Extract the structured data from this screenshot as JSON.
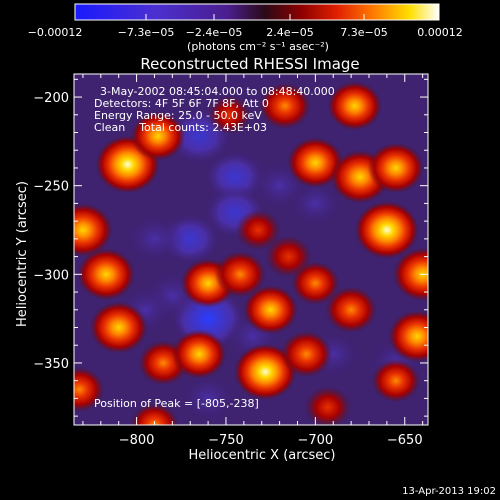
{
  "chart_data": {
    "type": "heatmap",
    "title": "Reconstructed RHESSI Image",
    "xlabel": "Heliocentric X (arcsec)",
    "ylabel": "Heliocentric Y (arcsec)",
    "xlim": [
      -835,
      -637
    ],
    "ylim": [
      -385,
      -187
    ],
    "x_ticks": [
      {
        "value": -800,
        "label": "−800"
      },
      {
        "value": -750,
        "label": "−750"
      },
      {
        "value": -700,
        "label": "−700"
      },
      {
        "value": -650,
        "label": "−650"
      }
    ],
    "y_ticks": [
      {
        "value": -200,
        "label": "−200"
      },
      {
        "value": -250,
        "label": "−250"
      },
      {
        "value": -300,
        "label": "−300"
      },
      {
        "value": -350,
        "label": "−350"
      }
    ],
    "colorbar": {
      "min": -0.00012,
      "max": 0.00012,
      "tick_labels": [
        "−0.00012",
        "−7.3e−05",
        "−2.4e−05",
        "2.4e−05",
        "7.3e−05",
        "0.00012"
      ],
      "unit_label": "(photons cm⁻² s⁻¹ asec⁻²)"
    },
    "info_lines": [
      "3-May-2002 08:45:04.000 to 08:48:40.000",
      "Detectors: 4F 5F 6F 7F 8F, Att 0",
      "Energy Range: 25.0 - 50.0 keV",
      "Clean    Total counts: 2.43E+03"
    ],
    "peak_label": "Position of Peak = [-805,-238]",
    "peak": {
      "x": -805,
      "y": -238
    },
    "sources": [
      {
        "x": -805,
        "y": -238,
        "value": 1.0
      },
      {
        "x": -788,
        "y": -222,
        "value": 0.7
      },
      {
        "x": -830,
        "y": -275,
        "value": 0.85
      },
      {
        "x": -817,
        "y": -300,
        "value": 0.8
      },
      {
        "x": -810,
        "y": -330,
        "value": 0.8
      },
      {
        "x": -785,
        "y": -350,
        "value": 0.55
      },
      {
        "x": -765,
        "y": -345,
        "value": 0.7
      },
      {
        "x": -790,
        "y": -385,
        "value": 0.5
      },
      {
        "x": -760,
        "y": -305,
        "value": 0.7
      },
      {
        "x": -742,
        "y": -300,
        "value": 0.6
      },
      {
        "x": -728,
        "y": -355,
        "value": 0.95
      },
      {
        "x": -725,
        "y": -320,
        "value": 0.7
      },
      {
        "x": -705,
        "y": -345,
        "value": 0.6
      },
      {
        "x": -717,
        "y": -205,
        "value": 0.6
      },
      {
        "x": -700,
        "y": -237,
        "value": 0.75
      },
      {
        "x": -675,
        "y": -245,
        "value": 0.85
      },
      {
        "x": -678,
        "y": -205,
        "value": 0.7
      },
      {
        "x": -660,
        "y": -275,
        "value": 1.0
      },
      {
        "x": -640,
        "y": -300,
        "value": 0.85
      },
      {
        "x": -655,
        "y": -240,
        "value": 0.75
      },
      {
        "x": -643,
        "y": -335,
        "value": 0.8
      },
      {
        "x": -680,
        "y": -320,
        "value": 0.6
      },
      {
        "x": -700,
        "y": -305,
        "value": 0.5
      },
      {
        "x": -693,
        "y": -375,
        "value": 0.45
      },
      {
        "x": -655,
        "y": -360,
        "value": 0.5
      },
      {
        "x": -832,
        "y": -365,
        "value": 0.55
      },
      {
        "x": -748,
        "y": -210,
        "value": 0.35
      },
      {
        "x": -732,
        "y": -275,
        "value": 0.4
      },
      {
        "x": -715,
        "y": -290,
        "value": 0.45
      }
    ],
    "negative_regions": [
      {
        "x": -760,
        "y": -325,
        "value": -0.85
      },
      {
        "x": -765,
        "y": -222,
        "value": -0.7
      },
      {
        "x": -745,
        "y": -245,
        "value": -0.55
      },
      {
        "x": -745,
        "y": -265,
        "value": -0.55
      },
      {
        "x": -770,
        "y": -280,
        "value": -0.5
      },
      {
        "x": -790,
        "y": -280,
        "value": -0.45
      },
      {
        "x": -780,
        "y": -312,
        "value": -0.45
      },
      {
        "x": -720,
        "y": -250,
        "value": -0.45
      },
      {
        "x": -735,
        "y": -335,
        "value": -0.4
      },
      {
        "x": -690,
        "y": -345,
        "value": -0.35
      },
      {
        "x": -700,
        "y": -260,
        "value": -0.35
      },
      {
        "x": -760,
        "y": -370,
        "value": -0.4
      },
      {
        "x": -655,
        "y": -350,
        "value": -0.4
      },
      {
        "x": -795,
        "y": -320,
        "value": -0.35
      }
    ]
  },
  "footer": {
    "timestamp": "13-Apr-2013 19:02"
  }
}
